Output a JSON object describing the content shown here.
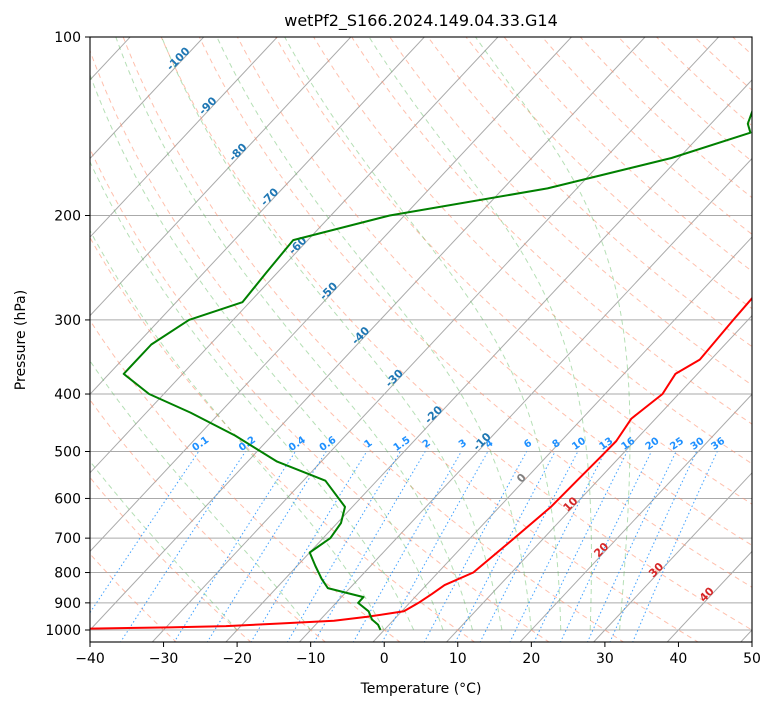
{
  "chart_data": {
    "type": "line",
    "subtype": "skew-t log-p diagram",
    "title": "wetPf2_S166.2024.149.04.33.G14",
    "xlabel": "Temperature (°C)",
    "ylabel": "Pressure (hPa)",
    "xlim": [
      -40,
      50
    ],
    "ylim": [
      1050,
      100
    ],
    "y_scale": "log",
    "x_ticks": [
      -40,
      -30,
      -20,
      -10,
      0,
      10,
      20,
      30,
      40,
      50
    ],
    "x_tick_labels": [
      "−40",
      "−30",
      "−20",
      "−10",
      "0",
      "10",
      "20",
      "30",
      "40",
      "50"
    ],
    "y_ticks": [
      1000,
      900,
      800,
      700,
      600,
      500,
      400,
      300,
      200,
      100
    ],
    "y_tick_labels": [
      "1000",
      "900",
      "800",
      "700",
      "600",
      "500",
      "400",
      "300",
      "200",
      "100"
    ],
    "grid": true,
    "skewed_isotherm_labels": [
      "-100",
      "-90",
      "-80",
      "-70",
      "-60",
      "-50",
      "-40",
      "-30",
      "-20",
      "-10"
    ],
    "mixing_ratio_labels": [
      "0.1",
      "0.2",
      "0.4",
      "0.6",
      "1",
      "1.5",
      "2",
      "3",
      "4",
      "6",
      "8",
      "10",
      "13",
      "16",
      "20",
      "25",
      "30",
      "36"
    ],
    "freezing_label": "0",
    "warm_isotherm_labels": [
      "10",
      "20",
      "30",
      "40"
    ],
    "colors": {
      "temperature": "#ff0000",
      "dewpoint": "#008000",
      "isotherm_label": "#1f77b4",
      "mixing_ratio": "#1e90ff",
      "warm_label": "#d62728",
      "dry_adiabat": "#ff8c69",
      "moist_adiabat": "#5cb85c",
      "frame_grid": "#aaaaaa"
    },
    "series": [
      {
        "name": "temperature",
        "x": [
          5.2,
          4.8,
          4.5,
          4.3,
          4.7,
          5.0,
          5.3,
          6.0,
          7.0,
          8.0,
          8.5,
          7.0,
          7.8,
          6.7,
          7.5,
          7.4,
          7.2,
          7.0,
          6.0,
          4.8,
          2.5,
          1.9,
          1.2,
          0.3,
          -4.0,
          -8.0,
          -15.0,
          -22.0,
          -29.5,
          -41.0,
          -53.0,
          -65.5,
          -77.0,
          -83.5,
          -86.0,
          -84.5
        ],
        "y": [
          100,
          105,
          110,
          118,
          125,
          133,
          140,
          158,
          200,
          300,
          350,
          370,
          400,
          440,
          480,
          510,
          560,
          620,
          700,
          800,
          840,
          870,
          900,
          930,
          950,
          965,
          975,
          985,
          990,
          995,
          1000,
          1005,
          1010,
          1015,
          1025,
          1040
        ]
      },
      {
        "name": "dewpoint",
        "x": [
          -12.0,
          -12.5,
          -15.0,
          -16.5,
          -15.0,
          -13.5,
          -21.0,
          -34.0,
          -52.0,
          -62.0,
          -61.5,
          -61.0,
          -66.0,
          -68.0,
          -68.0,
          -62.0,
          -54.0,
          -45.0,
          -36.0,
          -27.0,
          -21.0,
          -19.5,
          -19.0,
          -20.0,
          -17.5,
          -15.0,
          -13.0,
          -9.0,
          -7.0,
          -7.0,
          -4.5,
          -3.0,
          -1.5,
          -0.5
        ],
        "y": [
          100,
          110,
          120,
          130,
          140,
          145,
          160,
          180,
          200,
          220,
          250,
          280,
          300,
          330,
          370,
          400,
          430,
          470,
          520,
          560,
          620,
          660,
          700,
          740,
          780,
          820,
          850,
          870,
          880,
          900,
          930,
          960,
          980,
          1000
        ]
      }
    ]
  }
}
